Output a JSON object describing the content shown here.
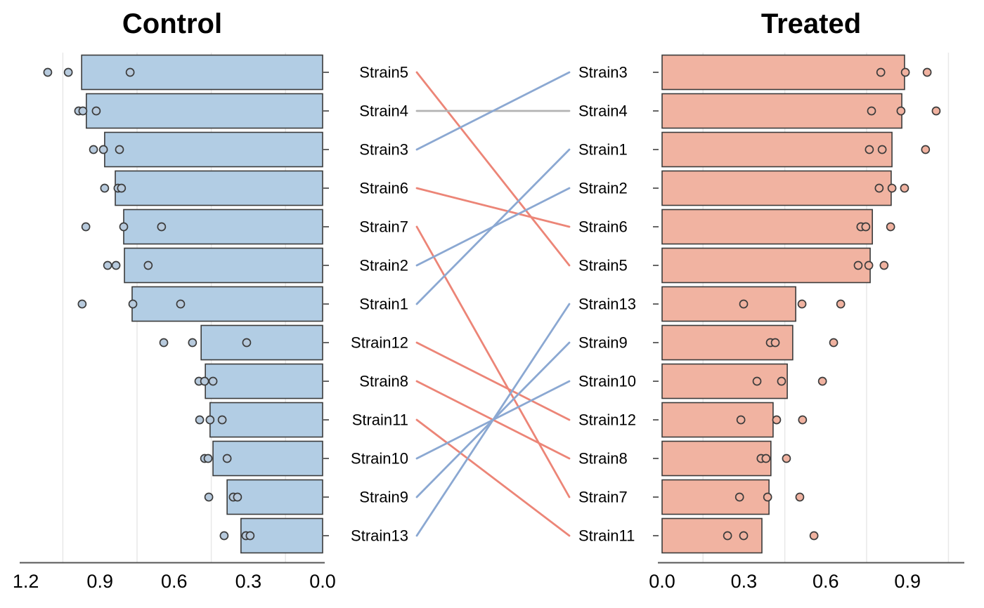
{
  "chart_data": {
    "type": "bar",
    "subtype": "back-to-back horizontal bar panels with rank slope connectors and replicate points",
    "grid": "minor-vertical-only",
    "legend_position": "none",
    "minor_gridlines": [
      0.15,
      0.45,
      0.75,
      1.05
    ],
    "colors": {
      "control_bar": "#b2cde4",
      "treated_bar": "#f1b3a1",
      "control_point": "#b7cadd",
      "treated_point": "#f0b2a0",
      "bar_stroke": "#3b3b3b",
      "up_line": "#8ba8d2",
      "down_line": "#ec8577",
      "same_line": "#b3b3b3",
      "gridline": "#e8e8e8",
      "axis_line": "#555555",
      "text": "#000000"
    },
    "panels": [
      {
        "title": "Control",
        "side": "left",
        "axis_reversed": true,
        "xlim": [
          0,
          1.22
        ],
        "x_ticks": [
          "1.2",
          "0.9",
          "0.6",
          "0.3",
          "0.0"
        ],
        "x_tick_values": [
          1.2,
          0.9,
          0.6,
          0.3,
          0.0
        ],
        "bars": [
          {
            "strain": "Strain5",
            "mean": 0.974,
            "points": [
              1.111,
              1.028,
              0.778
            ]
          },
          {
            "strain": "Strain4",
            "mean": 0.955,
            "points": [
              0.986,
              0.969,
              0.915
            ]
          },
          {
            "strain": "Strain3",
            "mean": 0.881,
            "points": [
              0.926,
              0.886,
              0.821
            ]
          },
          {
            "strain": "Strain6",
            "mean": 0.838,
            "points": [
              0.881,
              0.827,
              0.813
            ]
          },
          {
            "strain": "Strain7",
            "mean": 0.804,
            "points": [
              0.957,
              0.804,
              0.651
            ]
          },
          {
            "strain": "Strain2",
            "mean": 0.801,
            "points": [
              0.869,
              0.835,
              0.705
            ]
          },
          {
            "strain": "Strain1",
            "mean": 0.77,
            "points": [
              0.972,
              0.767,
              0.574
            ]
          },
          {
            "strain": "Strain12",
            "mean": 0.491,
            "points": [
              0.642,
              0.526,
              0.307
            ]
          },
          {
            "strain": "Strain8",
            "mean": 0.474,
            "points": [
              0.5,
              0.477,
              0.443
            ]
          },
          {
            "strain": "Strain11",
            "mean": 0.455,
            "points": [
              0.497,
              0.455,
              0.406
            ]
          },
          {
            "strain": "Strain10",
            "mean": 0.443,
            "points": [
              0.477,
              0.463,
              0.386
            ]
          },
          {
            "strain": "Strain9",
            "mean": 0.386,
            "points": [
              0.46,
              0.361,
              0.344
            ]
          },
          {
            "strain": "Strain13",
            "mean": 0.33,
            "points": [
              0.398,
              0.31,
              0.293
            ]
          }
        ]
      },
      {
        "title": "Treated",
        "side": "right",
        "axis_reversed": false,
        "xlim": [
          0,
          1.11
        ],
        "x_ticks": [
          "0.0",
          "0.3",
          "0.6",
          "0.9"
        ],
        "x_tick_values": [
          0.0,
          0.3,
          0.6,
          0.9
        ],
        "bars": [
          {
            "strain": "Strain3",
            "mean": 0.889,
            "points": [
              0.802,
              0.892,
              0.972
            ]
          },
          {
            "strain": "Strain4",
            "mean": 0.879,
            "points": [
              0.768,
              0.876,
              1.005
            ]
          },
          {
            "strain": "Strain1",
            "mean": 0.843,
            "points": [
              0.76,
              0.807,
              0.966
            ]
          },
          {
            "strain": "Strain2",
            "mean": 0.84,
            "points": [
              0.796,
              0.843,
              0.889
            ]
          },
          {
            "strain": "Strain6",
            "mean": 0.771,
            "points": [
              0.729,
              0.747,
              0.838
            ]
          },
          {
            "strain": "Strain5",
            "mean": 0.763,
            "points": [
              0.719,
              0.758,
              0.814
            ]
          },
          {
            "strain": "Strain13",
            "mean": 0.49,
            "points": [
              0.299,
              0.513,
              0.655
            ]
          },
          {
            "strain": "Strain9",
            "mean": 0.479,
            "points": [
              0.397,
              0.415,
              0.629
            ]
          },
          {
            "strain": "Strain10",
            "mean": 0.459,
            "points": [
              0.348,
              0.438,
              0.588
            ]
          },
          {
            "strain": "Strain12",
            "mean": 0.407,
            "points": [
              0.289,
              0.42,
              0.515
            ]
          },
          {
            "strain": "Strain8",
            "mean": 0.399,
            "points": [
              0.363,
              0.381,
              0.456
            ]
          },
          {
            "strain": "Strain7",
            "mean": 0.392,
            "points": [
              0.284,
              0.387,
              0.505
            ]
          },
          {
            "strain": "Strain11",
            "mean": 0.366,
            "points": [
              0.24,
              0.299,
              0.557
            ]
          }
        ]
      }
    ],
    "connectors": [
      {
        "strain": "Strain5",
        "left_rank": 1,
        "right_rank": 6,
        "direction": "down"
      },
      {
        "strain": "Strain4",
        "left_rank": 2,
        "right_rank": 2,
        "direction": "same"
      },
      {
        "strain": "Strain3",
        "left_rank": 3,
        "right_rank": 1,
        "direction": "up"
      },
      {
        "strain": "Strain6",
        "left_rank": 4,
        "right_rank": 5,
        "direction": "down"
      },
      {
        "strain": "Strain7",
        "left_rank": 5,
        "right_rank": 12,
        "direction": "down"
      },
      {
        "strain": "Strain2",
        "left_rank": 6,
        "right_rank": 4,
        "direction": "up"
      },
      {
        "strain": "Strain1",
        "left_rank": 7,
        "right_rank": 3,
        "direction": "up"
      },
      {
        "strain": "Strain12",
        "left_rank": 8,
        "right_rank": 10,
        "direction": "down"
      },
      {
        "strain": "Strain8",
        "left_rank": 9,
        "right_rank": 11,
        "direction": "down"
      },
      {
        "strain": "Strain11",
        "left_rank": 10,
        "right_rank": 13,
        "direction": "down"
      },
      {
        "strain": "Strain10",
        "left_rank": 11,
        "right_rank": 9,
        "direction": "up"
      },
      {
        "strain": "Strain9",
        "left_rank": 12,
        "right_rank": 8,
        "direction": "up"
      },
      {
        "strain": "Strain13",
        "left_rank": 13,
        "right_rank": 7,
        "direction": "up"
      }
    ]
  }
}
